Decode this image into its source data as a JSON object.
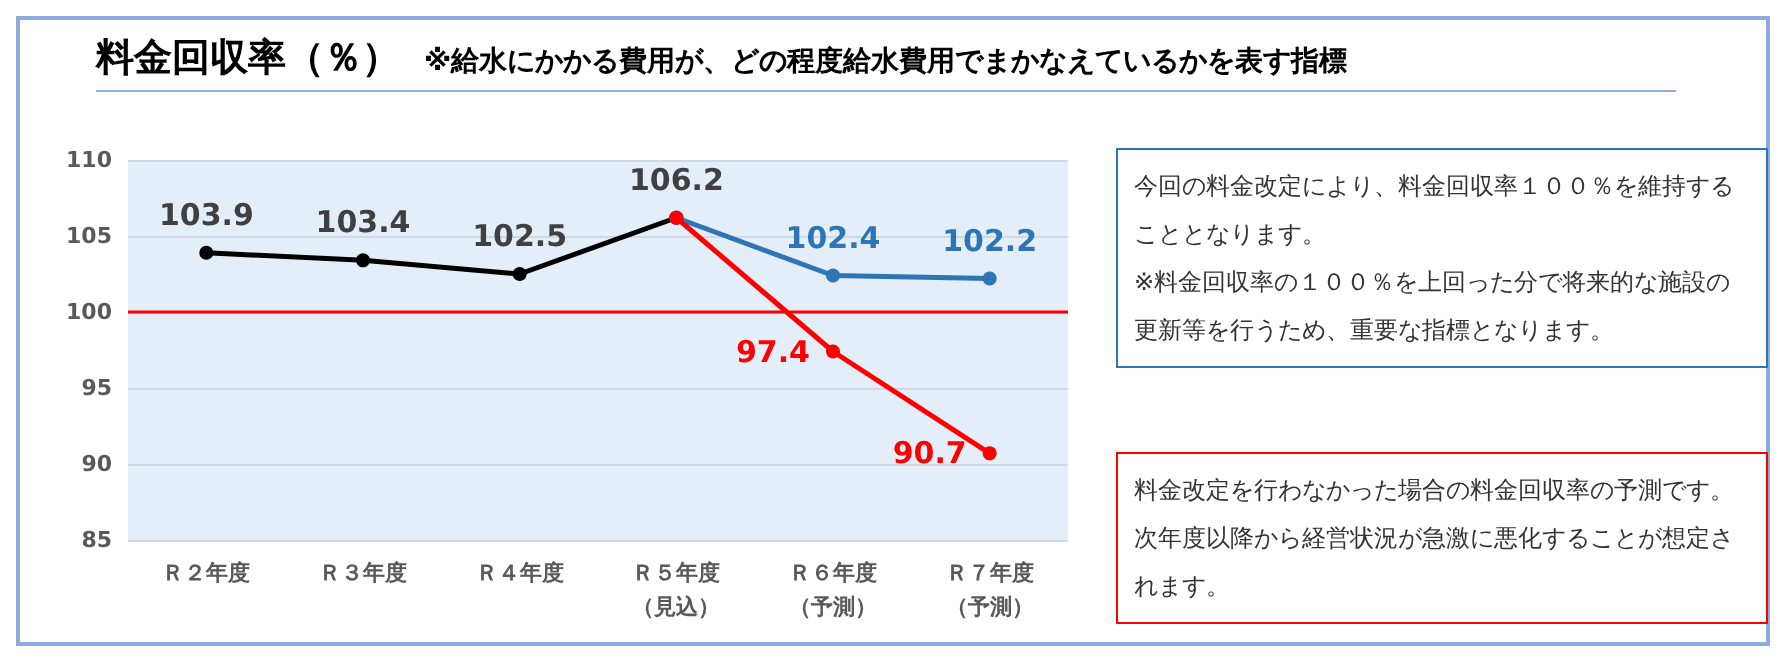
{
  "chart_data": {
    "type": "line",
    "title": "料金回収率（％）",
    "subtitle": "※給水にかかる費用が、どの程度給水費用でまかなえているかを表す指標",
    "categories": [
      "Ｒ２年度",
      "Ｒ３年度",
      "Ｒ４年度",
      "Ｒ５年度（見込）",
      "Ｒ６年度（予測）",
      "Ｒ７年度（予測）"
    ],
    "series": [
      {
        "color": "#000000",
        "values": [
          103.9,
          103.4,
          102.5,
          106.2,
          null,
          null
        ],
        "value_labels": [
          "103.9",
          "103.4",
          "102.5",
          "106.2",
          null,
          null
        ]
      },
      {
        "color": "#2e75b6",
        "values": [
          null,
          null,
          null,
          106.2,
          102.4,
          102.2
        ],
        "value_labels": [
          null,
          null,
          null,
          null,
          "102.4",
          "102.2"
        ]
      },
      {
        "color": "#ff0000",
        "values": [
          null,
          null,
          null,
          106.2,
          97.4,
          90.7
        ],
        "value_labels": [
          null,
          null,
          null,
          null,
          "97.4",
          "90.7"
        ]
      }
    ],
    "ylim": [
      85,
      110
    ],
    "yticks": [
      85,
      90,
      95,
      100,
      105,
      110
    ],
    "grid": "y",
    "marker": "circle",
    "line_style": "solid",
    "ref_lines": [
      {
        "axis": "y",
        "value": 100,
        "color": "#ff0000"
      }
    ],
    "annotations": [
      "今回の料金改定により、料金回収率１００％を維持することとなります。\n※料金回収率の１００％を上回った分で将来的な施設の更新等を行うため、重要な指標となります。",
      "料金改定を行わなかった場合の料金回収率の予測です。次年度以降から経営状況が急激に悪化することが想定されます。"
    ]
  }
}
